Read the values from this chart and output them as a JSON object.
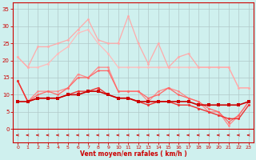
{
  "x": [
    0,
    1,
    2,
    3,
    4,
    5,
    6,
    7,
    8,
    9,
    10,
    11,
    12,
    13,
    14,
    15,
    16,
    17,
    18,
    19,
    20,
    21,
    22,
    23
  ],
  "line_light1": [
    21,
    18,
    18,
    19,
    22,
    24,
    28,
    29,
    25,
    22,
    18,
    18,
    18,
    18,
    18,
    18,
    18,
    18,
    18,
    18,
    18,
    18,
    12,
    12
  ],
  "line_light2": [
    21,
    18,
    24,
    24,
    25,
    26,
    29,
    32,
    26,
    25,
    25,
    33,
    25,
    19,
    25,
    18,
    21,
    22,
    18,
    18,
    18,
    18,
    12,
    12
  ],
  "line_mid1": [
    14,
    8,
    11,
    11,
    11,
    12,
    16,
    15,
    18,
    18,
    11,
    11,
    11,
    8,
    11,
    12,
    11,
    9,
    8,
    5,
    5,
    1,
    4,
    8
  ],
  "line_mid2": [
    14,
    8,
    10,
    11,
    10,
    12,
    15,
    15,
    17,
    17,
    11,
    11,
    11,
    9,
    10,
    12,
    10,
    9,
    8,
    6,
    5,
    2,
    4,
    8
  ],
  "line_dark1": [
    14,
    8,
    9,
    9,
    9,
    10,
    11,
    11,
    12,
    10,
    9,
    9,
    8,
    7,
    8,
    8,
    7,
    7,
    6,
    5,
    4,
    3,
    3,
    7
  ],
  "line_dark2": [
    8,
    8,
    9,
    9,
    9,
    10,
    10,
    11,
    11,
    10,
    9,
    9,
    8,
    8,
    8,
    8,
    8,
    8,
    7,
    7,
    7,
    7,
    7,
    8
  ],
  "bg_color": "#cff0ee",
  "grid_color": "#b0c8c8",
  "line_light1_color": "#ffbbbb",
  "line_light2_color": "#ffaaaa",
  "line_mid1_color": "#ff8888",
  "line_mid2_color": "#ff6666",
  "line_dark1_color": "#ee3333",
  "line_dark2_color": "#cc0000",
  "arrow_color": "#cc0000",
  "xlabel": "Vent moyen/en rafales ( km/h )",
  "ylim": [
    -4,
    37
  ],
  "yticks": [
    0,
    5,
    10,
    15,
    20,
    25,
    30,
    35
  ],
  "tick_color": "#cc0000",
  "xlabel_color": "#cc0000"
}
